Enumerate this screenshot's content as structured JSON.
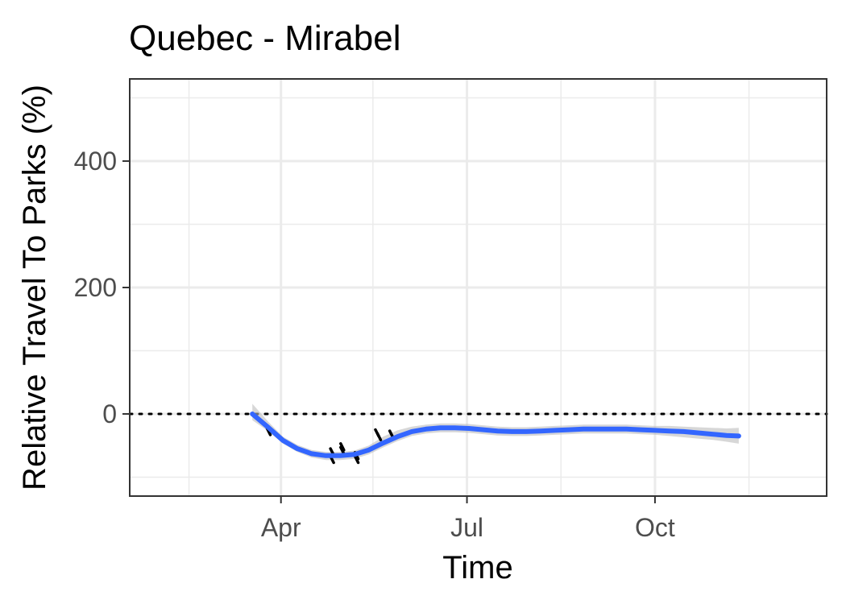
{
  "chart_data": {
    "type": "line",
    "title": "Quebec - Mirabel",
    "xlabel": "Time",
    "ylabel": "Relative Travel To Parks (%)",
    "x_axis": {
      "type": "date",
      "range_day_of_year": [
        17,
        358
      ],
      "ticks": [
        {
          "label": "Apr",
          "day": 91
        },
        {
          "label": "Jul",
          "day": 182
        },
        {
          "label": "Oct",
          "day": 274
        }
      ],
      "minor_ticks_day": [
        46,
        136,
        228,
        320
      ]
    },
    "y_axis": {
      "range": [
        -130,
        530
      ],
      "ticks": [
        0,
        200,
        400
      ],
      "minor_ticks": [
        -100,
        100,
        300,
        500
      ]
    },
    "grid": true,
    "reference_line": {
      "y": 0,
      "style": "dotted",
      "color": "#000000"
    },
    "colors": {
      "smooth": "#3366ff",
      "ribbon": "#bdbdbd",
      "points": "#000000",
      "grid": "#ebebeb",
      "panel_border": "#333333"
    },
    "series": [
      {
        "name": "smooth",
        "x_day": [
          77,
          85,
          92,
          99,
          106,
          113,
          120,
          127,
          134,
          141,
          148,
          155,
          162,
          169,
          176,
          183,
          190,
          197,
          204,
          211,
          218,
          225,
          232,
          239,
          246,
          253,
          260,
          267,
          274,
          281,
          288,
          295,
          302,
          309,
          315
        ],
        "y": [
          0,
          -22,
          -42,
          -55,
          -63,
          -66,
          -66,
          -64,
          -57,
          -46,
          -36,
          -28,
          -24,
          -22,
          -22,
          -23,
          -25,
          -27,
          -28,
          -28,
          -27,
          -26,
          -25,
          -24,
          -24,
          -24,
          -24,
          -25,
          -26,
          -27,
          -28,
          -30,
          -32,
          -34,
          -35
        ],
        "ribbon_lower": [
          -10,
          -28,
          -47,
          -60,
          -69,
          -73,
          -73,
          -71,
          -64,
          -53,
          -43,
          -35,
          -31,
          -29,
          -29,
          -30,
          -32,
          -34,
          -35,
          -35,
          -34,
          -33,
          -32,
          -31,
          -31,
          -31,
          -31,
          -32,
          -33,
          -35,
          -37,
          -39,
          -41,
          -44,
          -47
        ],
        "ribbon_upper": [
          16,
          -13,
          -36,
          -49,
          -57,
          -60,
          -60,
          -58,
          -50,
          -36,
          -26,
          -20,
          -17,
          -15,
          -15,
          -16,
          -18,
          -20,
          -21,
          -21,
          -20,
          -19,
          -18,
          -17,
          -17,
          -17,
          -17,
          -18,
          -19,
          -19,
          -20,
          -21,
          -22,
          -23,
          -22
        ]
      },
      {
        "name": "observations",
        "points": [
          {
            "x_day": 85,
            "y": -28
          },
          {
            "x_day": 116,
            "y": -60
          },
          {
            "x_day": 116,
            "y": -72
          },
          {
            "x_day": 121,
            "y": -52
          },
          {
            "x_day": 121,
            "y": -58
          },
          {
            "x_day": 128,
            "y": -66
          },
          {
            "x_day": 128,
            "y": -72
          },
          {
            "x_day": 138,
            "y": -30
          },
          {
            "x_day": 139,
            "y": -36
          },
          {
            "x_day": 145,
            "y": -32
          }
        ]
      }
    ]
  }
}
